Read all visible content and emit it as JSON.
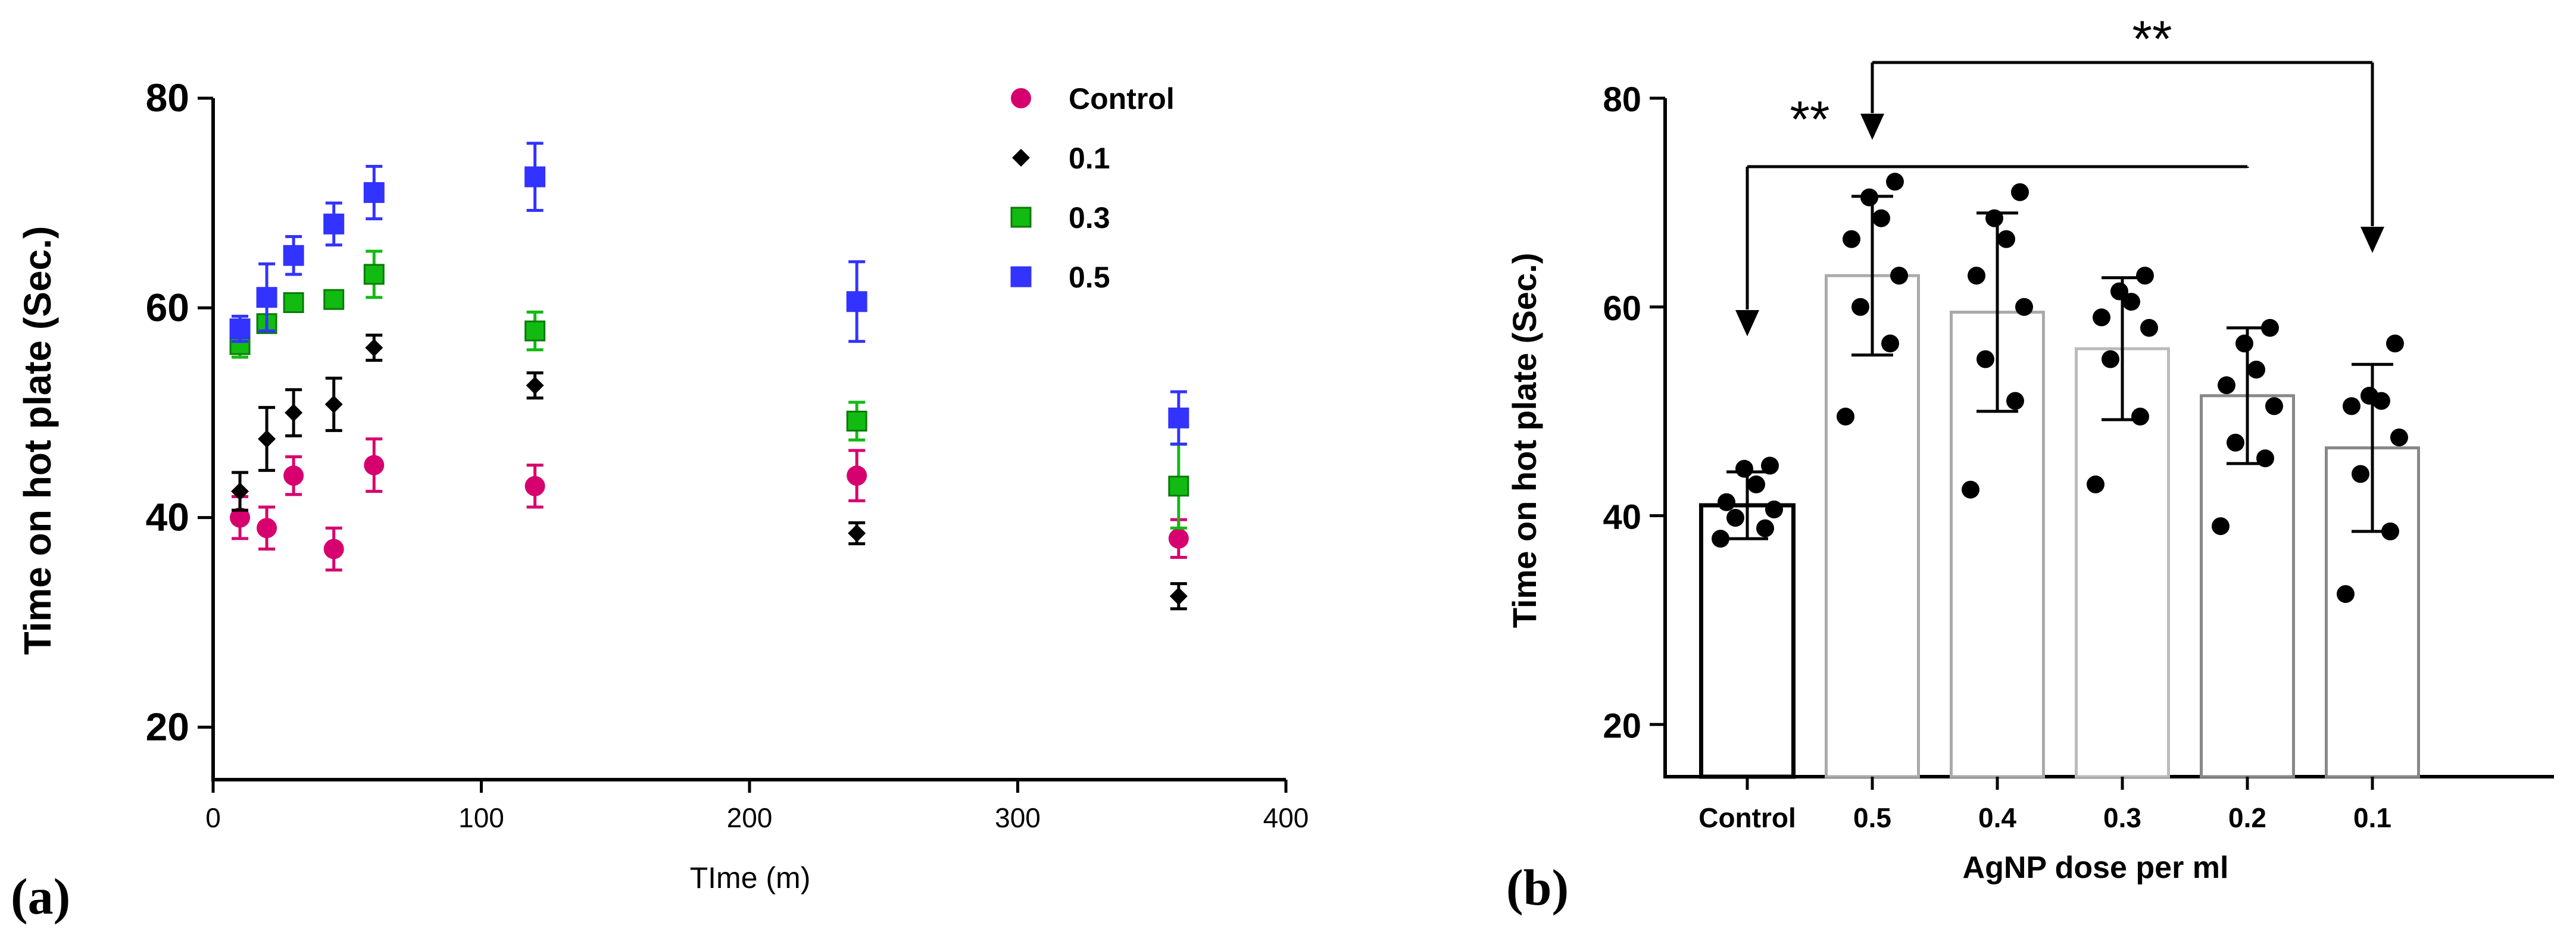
{
  "chart_data": [
    {
      "type": "scatter",
      "panel_label": "(a)",
      "xlabel": "TIme (m)",
      "ylabel": "Time on hot plate (Sec.)",
      "xlim": [
        0,
        400
      ],
      "ylim": [
        15,
        80
      ],
      "xticks": [
        "0",
        "100",
        "200",
        "300",
        "400"
      ],
      "yticks": [
        "20",
        "40",
        "60",
        "80"
      ],
      "x": [
        10,
        20,
        30,
        45,
        60,
        120,
        240,
        360
      ],
      "series": [
        {
          "name": "Control",
          "color": "#d6006e",
          "marker": "circle",
          "values": [
            40,
            39,
            44,
            37,
            45,
            43,
            44,
            38
          ],
          "err": [
            2,
            2,
            1.8,
            2,
            2.5,
            2,
            2.4,
            1.8
          ]
        },
        {
          "name": "0.1",
          "color": "#000000",
          "marker": "diamond",
          "values": [
            42.5,
            47.5,
            50,
            50.8,
            56.2,
            52.6,
            38.5,
            32.5
          ],
          "err": [
            1.8,
            3,
            2.2,
            2.5,
            1.2,
            1.2,
            1.0,
            1.2
          ]
        },
        {
          "name": "0.3",
          "color": "#11bb11",
          "marker": "square",
          "values": [
            56.5,
            58.5,
            60.5,
            60.8,
            63.2,
            57.8,
            49.2,
            43
          ],
          "err": [
            1.2,
            0.8,
            0.6,
            0.6,
            2.2,
            1.8,
            1.8,
            4
          ]
        },
        {
          "name": "0.5",
          "color": "#3333ff",
          "marker": "square",
          "values": [
            58,
            61,
            65,
            68,
            71,
            72.5,
            60.6,
            49.5
          ],
          "err": [
            1.2,
            3.2,
            1.8,
            2,
            2.5,
            3.2,
            3.8,
            2.5
          ]
        }
      ]
    },
    {
      "type": "bar",
      "panel_label": "(b)",
      "xlabel": "AgNP dose per ml",
      "ylabel": "Time on hot plate (Sec.)",
      "ylim": [
        15,
        80
      ],
      "yticks": [
        "20",
        "40",
        "60",
        "80"
      ],
      "categories": [
        "Control",
        "0.5",
        "0.4",
        "0.3",
        "0.2",
        "0.1"
      ],
      "values": [
        41,
        63,
        59.5,
        56,
        51.5,
        46.5
      ],
      "sd": [
        3.2,
        7.6,
        9.5,
        6.8,
        6.5,
        8
      ],
      "bar_edge_colors": [
        "#000000",
        "#aaaaaa",
        "#aaaaaa",
        "#bbbbbb",
        "#888888",
        "#888888"
      ],
      "points": [
        [
          37.8,
          38.8,
          39.8,
          40.6,
          41.3,
          43,
          44.5,
          44.8
        ],
        [
          49.5,
          56.5,
          60,
          63,
          66.5,
          68.5,
          70.5,
          72
        ],
        [
          42.5,
          51,
          55,
          60,
          63,
          66.5,
          68.5,
          71
        ],
        [
          43,
          49.5,
          55,
          58,
          59,
          60.5,
          61.5,
          63
        ],
        [
          39,
          45.5,
          47,
          50.5,
          52.5,
          54,
          56.5,
          58
        ],
        [
          32.5,
          38.5,
          44,
          47.5,
          50.5,
          51,
          51.5,
          56.5
        ]
      ],
      "significance": [
        {
          "label": "**",
          "from": "0.5",
          "to": "Control",
          "to_also": "0.2"
        },
        {
          "label": "**",
          "from": "0.5",
          "to": "0.1"
        }
      ]
    }
  ]
}
